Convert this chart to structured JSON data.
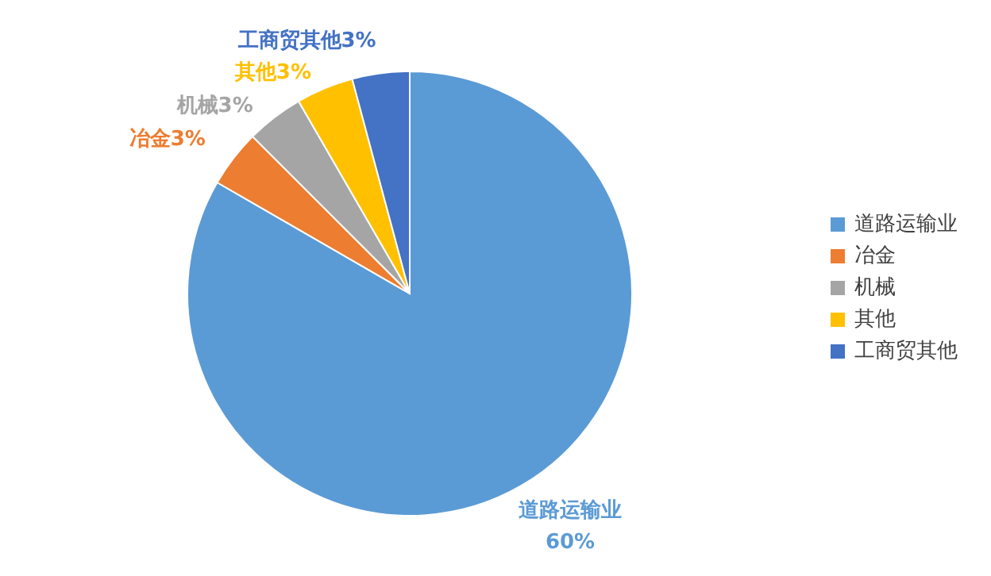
{
  "chart_data": {
    "type": "pie",
    "categories": [
      "道路运输业",
      "冶金",
      "机械",
      "其他",
      "工商贸其他"
    ],
    "values": [
      60,
      3,
      3,
      3,
      3
    ],
    "value_labels": [
      "60%",
      "3%",
      "3%",
      "3%",
      "3%"
    ],
    "colors": [
      "#5b9bd5",
      "#ed7d31",
      "#a5a5a5",
      "#ffc000",
      "#4472c4"
    ],
    "legend": "right"
  }
}
